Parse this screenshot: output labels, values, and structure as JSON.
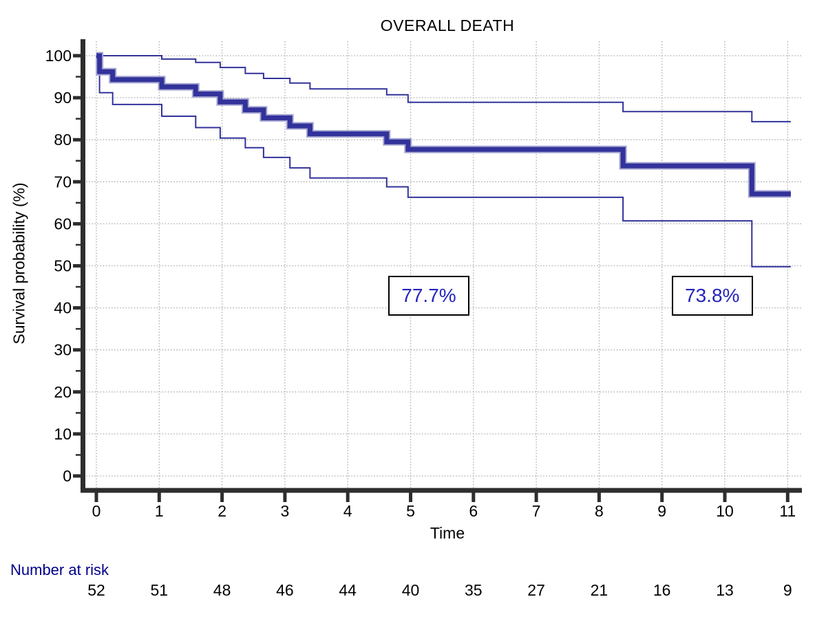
{
  "page": {
    "background": "#FFFFFF"
  },
  "chart_data": {
    "type": "line",
    "subtype": "kaplan_meier_step",
    "title": "OVERALL DEATH",
    "xlabel": "Time",
    "ylabel": "Survival probability (%)",
    "xlim": [
      0,
      11
    ],
    "ylim": [
      0,
      100
    ],
    "xticks": [
      0,
      1,
      2,
      3,
      4,
      5,
      6,
      7,
      8,
      9,
      10,
      11
    ],
    "yticks": [
      0,
      10,
      20,
      30,
      40,
      50,
      60,
      70,
      80,
      90,
      100
    ],
    "y_minor_ticks": [
      5,
      15,
      25,
      35,
      45,
      55,
      65,
      75,
      85,
      95
    ],
    "grid": "dotted",
    "legend": "none",
    "series": [
      {
        "name": "Survival estimate",
        "role": "main",
        "points": [
          [
            0,
            100
          ],
          [
            0.05,
            96.2
          ],
          [
            0.26,
            94.3
          ],
          [
            1.04,
            92.6
          ],
          [
            1.58,
            90.9
          ],
          [
            1.97,
            89.0
          ],
          [
            2.37,
            87.1
          ],
          [
            2.66,
            85.2
          ],
          [
            3.08,
            83.3
          ],
          [
            3.4,
            81.4
          ],
          [
            4.62,
            79.5
          ],
          [
            4.96,
            77.7
          ],
          [
            8.38,
            73.8
          ],
          [
            10.43,
            67.1
          ]
        ],
        "end_time": 11.05
      },
      {
        "name": "Upper 95% CI",
        "role": "ci_upper",
        "points": [
          [
            0,
            100
          ],
          [
            1.04,
            99.2
          ],
          [
            1.58,
            98.4
          ],
          [
            1.97,
            97.2
          ],
          [
            2.37,
            95.8
          ],
          [
            2.66,
            94.6
          ],
          [
            3.08,
            93.5
          ],
          [
            3.4,
            92.1
          ],
          [
            4.62,
            90.7
          ],
          [
            4.96,
            88.9
          ],
          [
            8.38,
            86.7
          ],
          [
            10.43,
            84.3
          ]
        ],
        "end_time": 11.05
      },
      {
        "name": "Lower 95% CI",
        "role": "ci_lower",
        "points": [
          [
            0,
            100
          ],
          [
            0.05,
            91.2
          ],
          [
            0.26,
            88.4
          ],
          [
            1.04,
            85.6
          ],
          [
            1.58,
            82.9
          ],
          [
            1.97,
            80.4
          ],
          [
            2.37,
            78.1
          ],
          [
            2.66,
            75.8
          ],
          [
            3.08,
            73.3
          ],
          [
            3.4,
            70.9
          ],
          [
            4.62,
            68.8
          ],
          [
            4.96,
            66.3
          ],
          [
            8.38,
            60.7
          ],
          [
            10.43,
            49.8
          ]
        ],
        "end_time": 11.05
      }
    ],
    "annotations": [
      {
        "text": "77.7%",
        "time": 5.29,
        "pct": 42.8
      },
      {
        "text": "73.8%",
        "time": 9.8,
        "pct": 42.8
      }
    ],
    "risk_table": {
      "label": "Number at risk",
      "times": [
        0,
        1,
        2,
        3,
        4,
        5,
        6,
        7,
        8,
        9,
        10,
        11
      ],
      "values": [
        52,
        51,
        48,
        46,
        44,
        40,
        35,
        27,
        21,
        16,
        13,
        9
      ]
    },
    "colors": {
      "curve": "#32329B",
      "curve_halo": "#A6A6D2",
      "ci": "#32329B",
      "annotation_text": "#2424BD",
      "risk_label": "#00008B",
      "grid": "#A9A9A9",
      "axis": "#2E2E2E",
      "tick_text": "#000000"
    }
  }
}
